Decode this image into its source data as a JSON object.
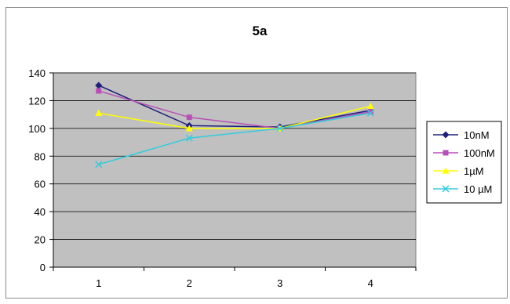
{
  "chart_data": {
    "type": "line",
    "title": "5a",
    "xlabel": "",
    "ylabel": "",
    "categories": [
      "1",
      "2",
      "3",
      "4"
    ],
    "ylim": [
      0,
      140
    ],
    "ytick_step": 20,
    "grid": true,
    "legend_position": "right",
    "plot_background": "#c0c0c0",
    "series": [
      {
        "name": "10nM",
        "values": [
          131,
          102,
          101,
          113
        ],
        "color": "#1f1f7a",
        "marker": "diamond"
      },
      {
        "name": "100nM",
        "values": [
          127,
          108,
          100,
          112
        ],
        "color": "#b84fb8",
        "marker": "square"
      },
      {
        "name": "1µM",
        "values": [
          111,
          100,
          100,
          116
        ],
        "color": "#ffff00",
        "marker": "triangle"
      },
      {
        "name": "10 µM",
        "values": [
          74,
          93,
          100,
          111
        ],
        "color": "#33ccdd",
        "marker": "x"
      }
    ]
  }
}
